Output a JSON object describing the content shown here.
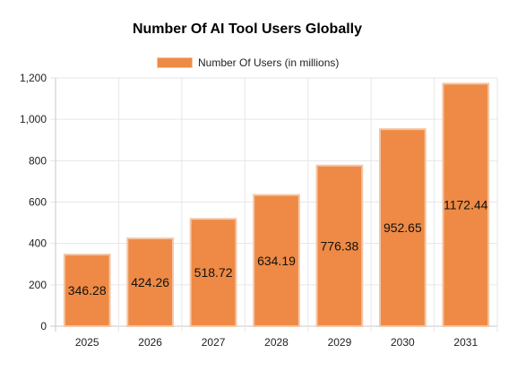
{
  "chart_data": {
    "type": "bar",
    "title": "Number Of AI Tool Users Globally",
    "xlabel": "",
    "ylabel": "",
    "categories": [
      "2025",
      "2026",
      "2027",
      "2028",
      "2029",
      "2030",
      "2031"
    ],
    "series": [
      {
        "name": "Number Of Users (in millions)",
        "values": [
          346.28,
          424.26,
          518.72,
          634.19,
          776.38,
          952.65,
          1172.44
        ],
        "color": "#ee8a45",
        "border_color": "#f3c6a6"
      }
    ],
    "data_labels": [
      "346.28",
      "424.26",
      "518.72",
      "634.19",
      "776.38",
      "952.65",
      "1172.44"
    ],
    "ylim": [
      0,
      1200
    ],
    "yticks": [
      0,
      200,
      400,
      600,
      800,
      1000,
      1200
    ],
    "ytick_labels": [
      "0",
      "200",
      "400",
      "600",
      "800",
      "1,000",
      "1,200"
    ],
    "grid": true,
    "legend_position": "top-center"
  }
}
